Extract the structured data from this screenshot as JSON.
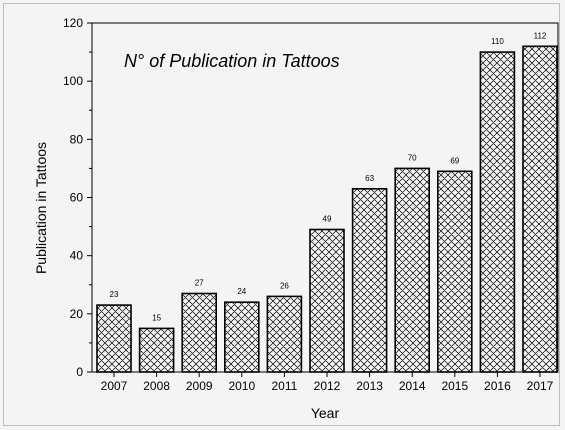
{
  "chart_data": {
    "type": "bar",
    "title": "N° of Publication in Tattoos",
    "xlabel": "Year",
    "ylabel": "Publication in Tattoos",
    "categories": [
      "2007",
      "2008",
      "2009",
      "2010",
      "2011",
      "2012",
      "2013",
      "2014",
      "2015",
      "2016",
      "2017"
    ],
    "values": [
      23,
      15,
      27,
      24,
      26,
      49,
      63,
      70,
      69,
      110,
      112
    ],
    "data_labels": [
      "23",
      "15",
      "27",
      "24",
      "26",
      "49",
      "63",
      "70",
      "69",
      "110",
      "112"
    ],
    "ylim": [
      0,
      120
    ],
    "yticks": [
      "0",
      "20",
      "40",
      "60",
      "80",
      "100",
      "120"
    ],
    "grid": false,
    "legend": "none",
    "bar_fill": "crosshatch",
    "bar_color": "#000000"
  }
}
